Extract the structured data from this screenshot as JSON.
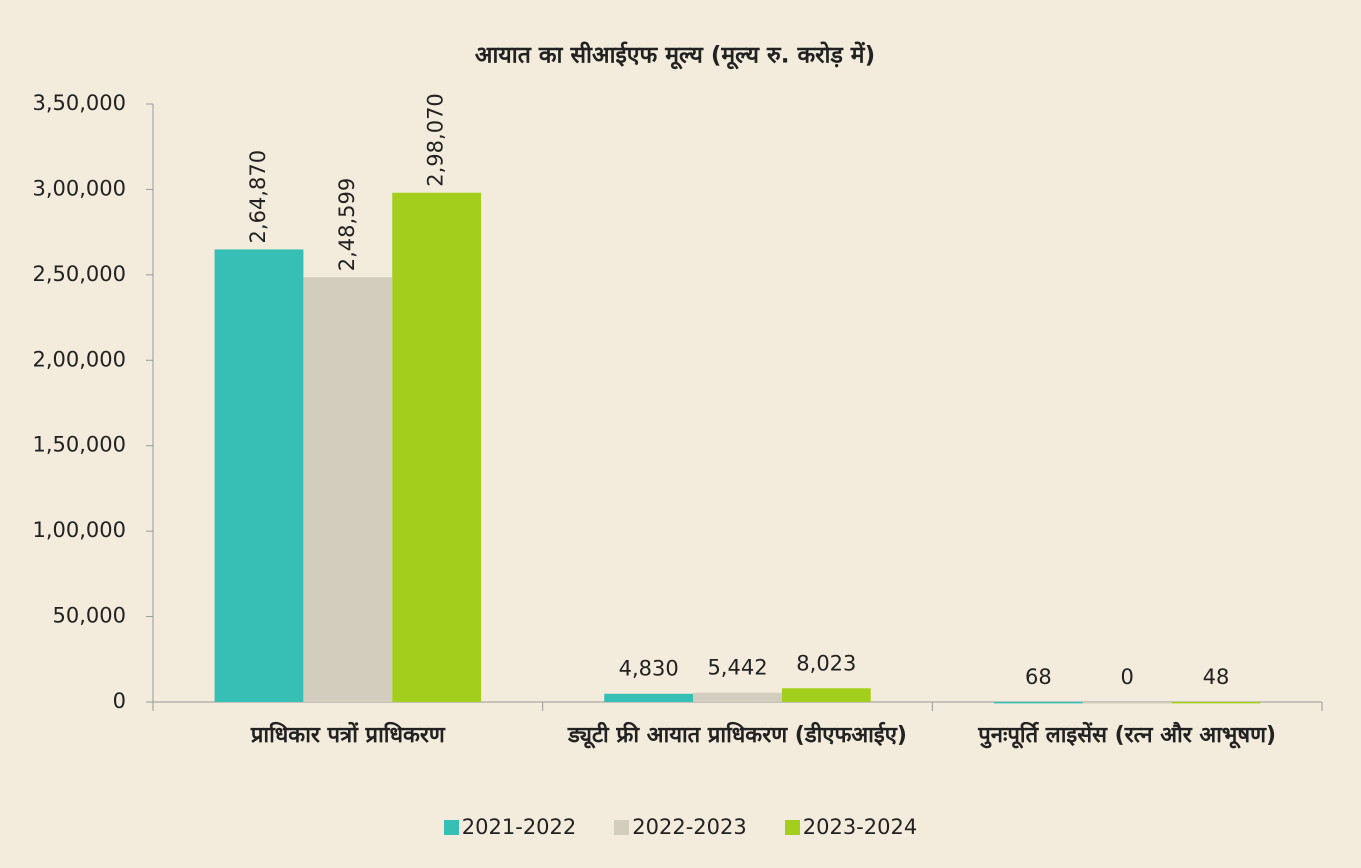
{
  "chart_data": {
    "type": "bar",
    "title": "आयात का सीआईएफ मूल्य (मूल्य रु. करोड़ में)",
    "categories": [
      "प्राधिकार पत्रों प्राधिकरण",
      "ड्यूटी फ्री आयात प्राधिकरण (डीएफआईए)",
      "पुनःपूर्ति लाइसेंस (रत्न और आभूषण)"
    ],
    "series": [
      {
        "name": "2021-2022",
        "color": "#36bfb4",
        "values": [
          264870,
          4830,
          68
        ],
        "value_labels": [
          "2,64,870",
          "4,830",
          "68"
        ]
      },
      {
        "name": "2022-2023",
        "color": "#d3cdbd",
        "values": [
          248599,
          5442,
          0
        ],
        "value_labels": [
          "2,48,599",
          "5,442",
          "0"
        ]
      },
      {
        "name": "2023-2024",
        "color": "#a3cf1c",
        "values": [
          298070,
          8023,
          48
        ],
        "value_labels": [
          "2,98,070",
          "8,023",
          "48"
        ]
      }
    ],
    "ylim": [
      0,
      350000
    ],
    "yticks": [
      0,
      {
        "value": 50000,
        "label": "50,000"
      },
      {
        "value": 100000,
        "label": "1,00,000"
      },
      {
        "value": 150000,
        "label": "1,50,000"
      },
      {
        "value": 200000,
        "label": "2,00,000"
      },
      {
        "value": 250000,
        "label": "2,50,000"
      },
      {
        "value": 300000,
        "label": "3,00,000"
      },
      {
        "value": 350000,
        "label": "3,50,000"
      }
    ],
    "legend": "bottom"
  }
}
